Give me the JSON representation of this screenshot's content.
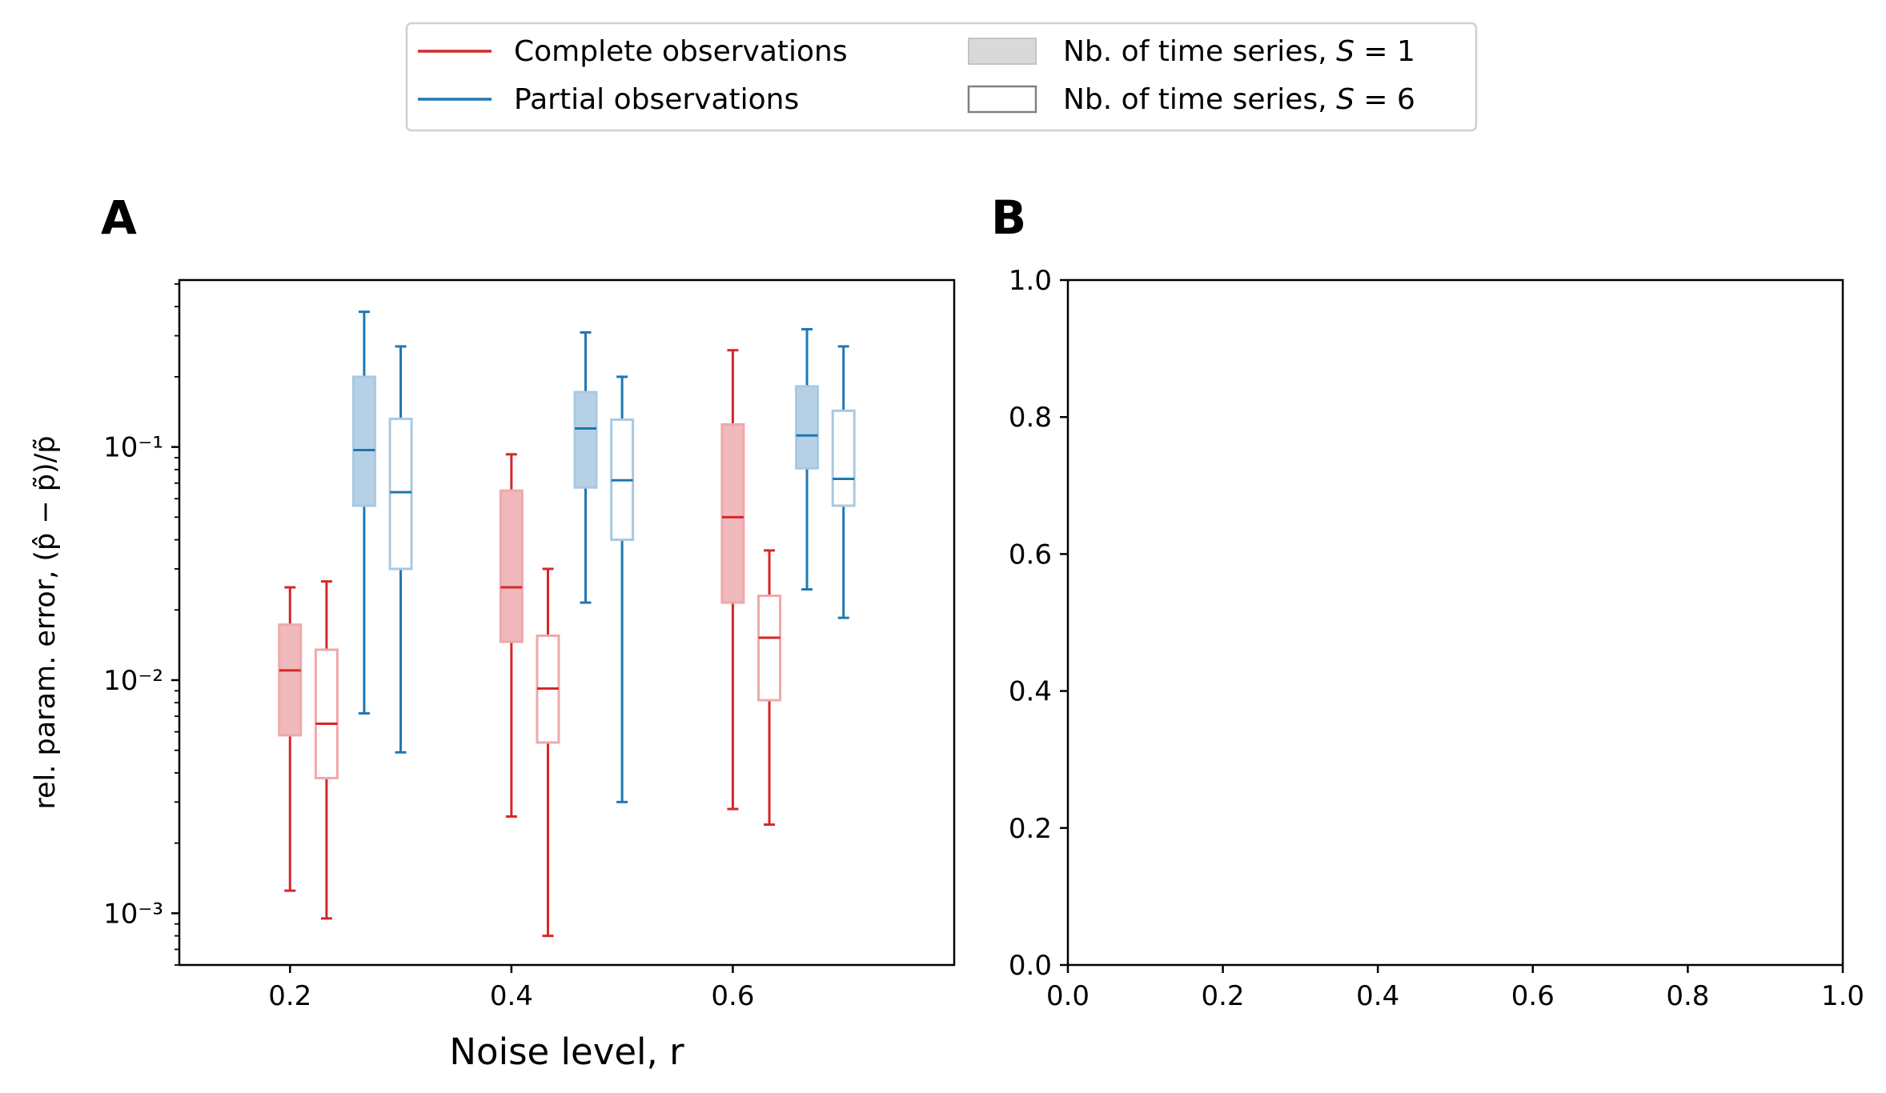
{
  "legend": {
    "items": [
      {
        "label": "Complete observations",
        "kind": "line",
        "color": "#d62728"
      },
      {
        "label": "Partial observations",
        "kind": "line",
        "color": "#1f77b4"
      },
      {
        "label": "Nb. of time series, S = 1",
        "kind": "patch-filled"
      },
      {
        "label": "Nb. of time series, S = 6",
        "kind": "patch-empty"
      }
    ]
  },
  "colors": {
    "complete": "#d62728",
    "partial": "#1f77b4",
    "complete_fill": "#f0b9bb",
    "partial_fill": "#b6d1e6",
    "complete_light": "#f0a8ab",
    "partial_light": "#a9c9e2"
  },
  "chart_data": [
    {
      "panel": "A",
      "type": "box",
      "xlabel": "Noise level, r",
      "ylabel": "rel. param. error, (p̂ − p̃)/p̃",
      "yscale": "log",
      "xlim": [
        0.1,
        0.8
      ],
      "ylim": [
        0.0006,
        0.52
      ],
      "xticks": [
        0.2,
        0.4,
        0.6
      ],
      "xtick_labels": [
        "0.2",
        "0.4",
        "0.6"
      ],
      "yticks": [
        0.001,
        0.01,
        0.1
      ],
      "ytick_labels": [
        "10⁻³",
        "10⁻²",
        "10⁻¹"
      ],
      "boxes": [
        {
          "series": "Complete observations",
          "S": 1,
          "x": 0.2,
          "whislo": 0.00125,
          "q1": 0.0058,
          "med": 0.011,
          "q3": 0.0173,
          "whishi": 0.025
        },
        {
          "series": "Complete observations",
          "S": 6,
          "x": 0.233,
          "whislo": 0.00095,
          "q1": 0.0038,
          "med": 0.0065,
          "q3": 0.0135,
          "whishi": 0.0265
        },
        {
          "series": "Partial observations",
          "S": 1,
          "x": 0.267,
          "whislo": 0.0072,
          "q1": 0.056,
          "med": 0.097,
          "q3": 0.2,
          "whishi": 0.38
        },
        {
          "series": "Partial observations",
          "S": 6,
          "x": 0.3,
          "whislo": 0.0049,
          "q1": 0.03,
          "med": 0.064,
          "q3": 0.132,
          "whishi": 0.27
        },
        {
          "series": "Complete observations",
          "S": 1,
          "x": 0.4,
          "whislo": 0.0026,
          "q1": 0.0146,
          "med": 0.025,
          "q3": 0.065,
          "whishi": 0.093
        },
        {
          "series": "Complete observations",
          "S": 6,
          "x": 0.433,
          "whislo": 0.0008,
          "q1": 0.0054,
          "med": 0.0092,
          "q3": 0.0155,
          "whishi": 0.03
        },
        {
          "series": "Partial observations",
          "S": 1,
          "x": 0.467,
          "whislo": 0.0215,
          "q1": 0.067,
          "med": 0.12,
          "q3": 0.172,
          "whishi": 0.31
        },
        {
          "series": "Partial observations",
          "S": 6,
          "x": 0.5,
          "whislo": 0.003,
          "q1": 0.04,
          "med": 0.072,
          "q3": 0.131,
          "whishi": 0.2
        },
        {
          "series": "Complete observations",
          "S": 1,
          "x": 0.6,
          "whislo": 0.0028,
          "q1": 0.0215,
          "med": 0.05,
          "q3": 0.125,
          "whishi": 0.26
        },
        {
          "series": "Complete observations",
          "S": 6,
          "x": 0.633,
          "whislo": 0.0024,
          "q1": 0.0082,
          "med": 0.0152,
          "q3": 0.023,
          "whishi": 0.036
        },
        {
          "series": "Partial observations",
          "S": 1,
          "x": 0.667,
          "whislo": 0.0245,
          "q1": 0.081,
          "med": 0.112,
          "q3": 0.182,
          "whishi": 0.32
        },
        {
          "series": "Partial observations",
          "S": 6,
          "x": 0.7,
          "whislo": 0.0185,
          "q1": 0.056,
          "med": 0.073,
          "q3": 0.143,
          "whishi": 0.27
        }
      ]
    },
    {
      "panel": "B",
      "type": "empty",
      "xlim": [
        0.0,
        1.0
      ],
      "ylim": [
        0.0,
        1.0
      ],
      "xticks": [
        0.0,
        0.2,
        0.4,
        0.6,
        0.8,
        1.0
      ],
      "xtick_labels": [
        "0.0",
        "0.2",
        "0.4",
        "0.6",
        "0.8",
        "1.0"
      ],
      "yticks": [
        0.0,
        0.2,
        0.4,
        0.6,
        0.8,
        1.0
      ],
      "ytick_labels": [
        "0.0",
        "0.2",
        "0.4",
        "0.6",
        "0.8",
        "1.0"
      ]
    }
  ]
}
